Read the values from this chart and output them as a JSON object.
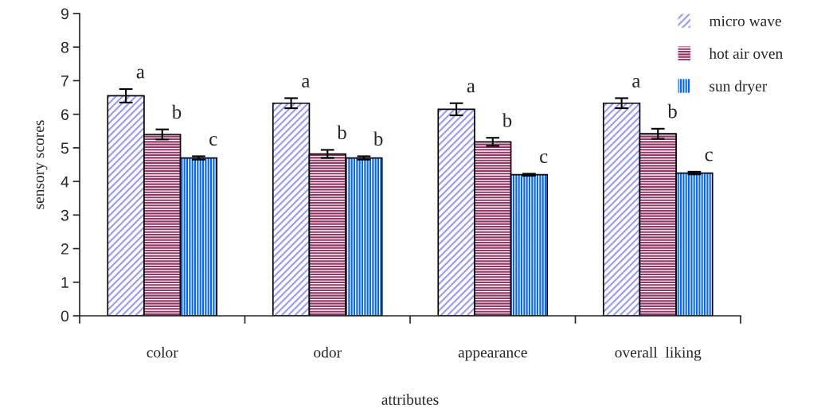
{
  "chart_data": {
    "type": "bar",
    "xlabel": "attributes",
    "ylabel": "sensory scores",
    "categories": [
      "color",
      "odor",
      "appearance",
      "overall  liking"
    ],
    "series": [
      {
        "name": "micro wave",
        "color": "#9999ff",
        "values": [
          6.55,
          6.33,
          6.15,
          6.33
        ],
        "errors": [
          0.2,
          0.15,
          0.18,
          0.15
        ]
      },
      {
        "name": "hot air oven",
        "color": "#993366",
        "values": [
          5.4,
          4.82,
          5.18,
          5.42
        ],
        "errors": [
          0.15,
          0.12,
          0.12,
          0.15
        ]
      },
      {
        "name": "sun dryer",
        "color": "#0066ff",
        "values": [
          4.7,
          4.7,
          4.2,
          4.25
        ],
        "errors": [
          0.05,
          0.05,
          0.03,
          0.04
        ]
      }
    ],
    "annotations": [
      "a",
      "b",
      "c",
      "a",
      "b",
      "b",
      "a",
      "b",
      "c",
      "a",
      "b",
      "c"
    ],
    "ylim": [
      0,
      9
    ],
    "yticks": [
      0,
      1,
      2,
      3,
      4,
      5,
      6,
      7,
      8,
      9
    ],
    "grid": false,
    "legend": "top right"
  }
}
